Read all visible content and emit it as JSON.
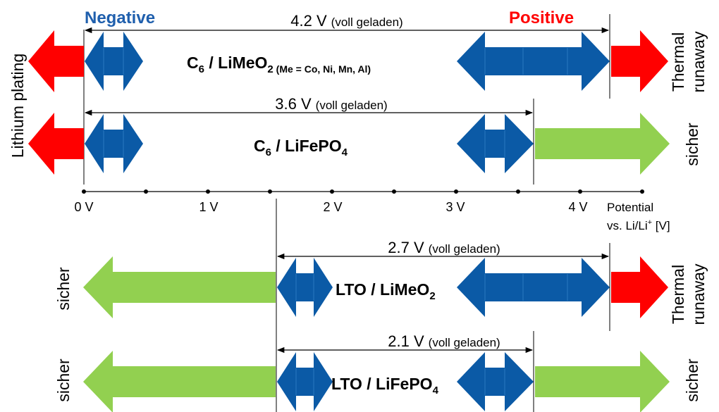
{
  "colors": {
    "red": "#ff0000",
    "blue": "#0b5aa6",
    "blue_seam": "#1f6fb8",
    "green": "#92d050",
    "negative_label": "#1f5fad",
    "positive_label": "#ff0000"
  },
  "header": {
    "negative": "Negative",
    "positive": "Positive"
  },
  "side_labels": {
    "lithium_plating": "Lithium plating",
    "thermal": "Thermal",
    "runaway": "runaway",
    "sicher": "sicher"
  },
  "rows": [
    {
      "main": "C",
      "sub": "6",
      "rest": " / LiMeO",
      "sub2": "2",
      "extra": " (Me = Co, Ni, Mn, Al)",
      "voltage": "4.2 V",
      "note": "(voll geladen)",
      "start_v": 0,
      "end_v": 4.2
    },
    {
      "main": "C",
      "sub": "6",
      "rest": " / LiFePO",
      "sub2": "4",
      "extra": "",
      "voltage": "3.6 V",
      "note": "(voll geladen)",
      "start_v": 0,
      "end_v": 3.6
    },
    {
      "main": "LTO",
      "sub": "",
      "rest": " / LiMeO",
      "sub2": "2",
      "extra": "",
      "voltage": "2.7 V",
      "note": "(voll geladen)",
      "start_v": 1.55,
      "end_v": 4.25
    },
    {
      "main": "LTO",
      "sub": "",
      "rest": " / LiFePO",
      "sub2": "4",
      "extra": "",
      "voltage": "2.1 V",
      "note": "(voll geladen)",
      "start_v": 1.55,
      "end_v": 3.65
    }
  ],
  "axis": {
    "ticks": [
      "0 V",
      "1 V",
      "2 V",
      "3 V",
      "4 V"
    ],
    "label_line1": "Potential",
    "label_line2_pre": "vs. Li/Li",
    "label_line2_sup": "+",
    "label_line2_post": " [V]"
  }
}
